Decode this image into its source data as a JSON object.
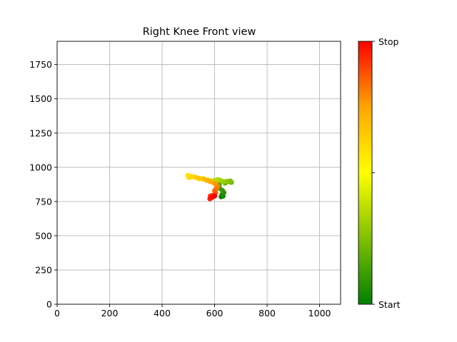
{
  "chart_data": {
    "type": "scatter",
    "title": "Right Knee Front view",
    "xlabel": "",
    "ylabel": "",
    "xlim": [
      0,
      1080
    ],
    "ylim": [
      0,
      1920
    ],
    "x_ticks": [
      0,
      200,
      400,
      600,
      800,
      1000
    ],
    "y_ticks": [
      0,
      250,
      500,
      750,
      1000,
      1250,
      1500,
      1750
    ],
    "grid": true,
    "colorbar": {
      "label_bottom": "Start",
      "label_top": "Stop",
      "colors": [
        "#008000",
        "#ffff00",
        "#ffa500",
        "#ff0000"
      ]
    },
    "series": [
      {
        "x": [
          625,
          632,
          628,
          635,
          630,
          620,
          612,
          618,
          640,
          655,
          664,
          660,
          648,
          635,
          622,
          612,
          600,
          588,
          578,
          566,
          556,
          544,
          532,
          520,
          508,
          498,
          502,
          512,
          526,
          540,
          556,
          570,
          584,
          598,
          606,
          610,
          606,
          600,
          604,
          600,
          592,
          584,
          582,
          590,
          600
        ],
        "y": [
          785,
          790,
          800,
          815,
          830,
          845,
          860,
          875,
          885,
          895,
          890,
          900,
          898,
          895,
          905,
          910,
          905,
          900,
          905,
          910,
          918,
          915,
          922,
          930,
          935,
          940,
          925,
          930,
          928,
          920,
          915,
          905,
          895,
          885,
          875,
          860,
          845,
          830,
          815,
          800,
          795,
          790,
          770,
          780,
          790
        ]
      }
    ]
  }
}
